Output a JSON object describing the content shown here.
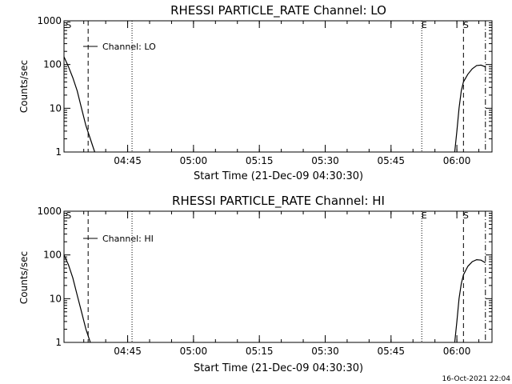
{
  "timestamp": "16-Oct-2021 22:04",
  "colors": {
    "background": "#ffffff",
    "foreground": "#000000"
  },
  "chart_data": [
    {
      "type": "line",
      "title": "RHESSI PARTICLE_RATE Channel: LO",
      "xlabel": "Start Time (21-Dec-09 04:30:30)",
      "ylabel": "Counts/sec",
      "ylog": true,
      "ylim": [
        1,
        1000
      ],
      "xlim": [
        "04:30:30",
        "06:08:00"
      ],
      "x_ticks": [
        "04:45",
        "05:00",
        "05:15",
        "05:30",
        "05:45",
        "06:00"
      ],
      "y_ticks": [
        "1",
        "10",
        "100",
        "1000"
      ],
      "legend": {
        "placement": "top-left",
        "entries": [
          "Channel: LO"
        ]
      },
      "markers": [
        {
          "label": "S",
          "time": "04:31:00",
          "style": "none"
        },
        {
          "label": "",
          "time": "04:36:00",
          "style": "dashed"
        },
        {
          "label": "",
          "time": "04:46:00",
          "style": "dotted"
        },
        {
          "label": "E",
          "time": "05:52:00",
          "style": "dotted"
        },
        {
          "label": "S",
          "time": "06:01:30",
          "style": "dashed"
        },
        {
          "label": "",
          "time": "06:06:30",
          "style": "dashdot"
        }
      ],
      "series": [
        {
          "name": "Channel: LO",
          "segments": [
            [
              [
                "04:30:30",
                150
              ],
              [
                "04:31:30",
                90
              ],
              [
                "04:32:30",
                50
              ],
              [
                "04:33:30",
                25
              ],
              [
                "04:34:30",
                10
              ],
              [
                "04:35:30",
                4
              ],
              [
                "04:36:30",
                2
              ],
              [
                "04:37:00",
                1.4
              ],
              [
                "04:37:30",
                1
              ]
            ],
            [
              [
                "05:59:30",
                1
              ],
              [
                "06:00:00",
                3
              ],
              [
                "06:00:30",
                10
              ],
              [
                "06:01:00",
                25
              ],
              [
                "06:01:30",
                40
              ],
              [
                "06:02:30",
                60
              ],
              [
                "06:03:30",
                80
              ],
              [
                "06:04:30",
                95
              ],
              [
                "06:05:30",
                97
              ],
              [
                "06:06:00",
                93
              ],
              [
                "06:06:30",
                88
              ]
            ]
          ]
        }
      ]
    },
    {
      "type": "line",
      "title": "RHESSI PARTICLE_RATE Channel: HI",
      "xlabel": "Start Time (21-Dec-09 04:30:30)",
      "ylabel": "Counts/sec",
      "ylog": true,
      "ylim": [
        1,
        1000
      ],
      "xlim": [
        "04:30:30",
        "06:08:00"
      ],
      "x_ticks": [
        "04:45",
        "05:00",
        "05:15",
        "05:30",
        "05:45",
        "06:00"
      ],
      "y_ticks": [
        "1",
        "10",
        "100",
        "1000"
      ],
      "legend": {
        "placement": "top-left",
        "entries": [
          "Channel: HI"
        ]
      },
      "markers": [
        {
          "label": "S",
          "time": "04:31:00",
          "style": "none"
        },
        {
          "label": "",
          "time": "04:36:00",
          "style": "dashed"
        },
        {
          "label": "",
          "time": "04:46:00",
          "style": "dotted"
        },
        {
          "label": "E",
          "time": "05:52:00",
          "style": "dotted"
        },
        {
          "label": "S",
          "time": "06:01:30",
          "style": "dashed"
        },
        {
          "label": "",
          "time": "06:06:30",
          "style": "dashdot"
        }
      ],
      "series": [
        {
          "name": "Channel: HI",
          "segments": [
            [
              [
                "04:30:30",
                100
              ],
              [
                "04:31:30",
                60
              ],
              [
                "04:32:30",
                30
              ],
              [
                "04:33:30",
                12
              ],
              [
                "04:34:30",
                5
              ],
              [
                "04:35:30",
                2
              ],
              [
                "04:36:30",
                1
              ]
            ],
            [
              [
                "05:59:30",
                1
              ],
              [
                "06:00:00",
                3
              ],
              [
                "06:00:30",
                10
              ],
              [
                "06:01:00",
                22
              ],
              [
                "06:01:30",
                35
              ],
              [
                "06:02:30",
                55
              ],
              [
                "06:03:30",
                70
              ],
              [
                "06:04:30",
                78
              ],
              [
                "06:05:30",
                76
              ],
              [
                "06:06:30",
                66
              ]
            ]
          ]
        }
      ]
    }
  ]
}
